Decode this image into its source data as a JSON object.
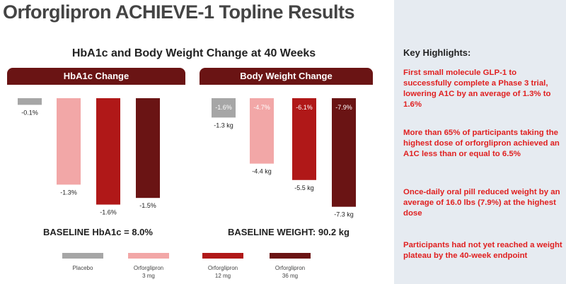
{
  "title": "Orforglipron ACHIEVE-1 Topline Results",
  "chart_heading": "HbA1c and Body Weight Change at 40 Weeks",
  "chart_data": [
    {
      "type": "bar",
      "title": "HbA1c Change",
      "categories": [
        "Placebo",
        "Orforglipron 3 mg",
        "Orforglipron 12 mg",
        "Orforglipron 36 mg"
      ],
      "values": [
        -0.1,
        -1.3,
        -1.6,
        -1.5
      ],
      "value_labels": [
        "-0.1%",
        "-1.3%",
        "-1.6%",
        "-1.5%"
      ],
      "ylim": [
        -1.7,
        0
      ],
      "baseline_text": "BASELINE HbA1c = 8.0%"
    },
    {
      "type": "bar",
      "title": "Body Weight Change",
      "categories": [
        "Placebo",
        "Orforglipron 3 mg",
        "Orforglipron 12 mg",
        "Orforglipron 36 mg"
      ],
      "values": [
        -1.3,
        -4.4,
        -5.5,
        -7.3
      ],
      "percent_labels": [
        "-1.6%",
        "-4.7%",
        "-6.1%",
        "-7.9%"
      ],
      "value_labels": [
        "-1.3 kg",
        "-4.4 kg",
        "-5.5 kg",
        "-7.3 kg"
      ],
      "ylim": [
        -7.6,
        0
      ],
      "baseline_text": "BASELINE WEIGHT: 90.2 kg"
    }
  ],
  "legend": [
    {
      "line1": "Placebo",
      "line2": "",
      "color": "#a6a6a6"
    },
    {
      "line1": "Orforglipron",
      "line2": "3 mg",
      "color": "#f2a7a7"
    },
    {
      "line1": "Orforglipron",
      "line2": "12 mg",
      "color": "#b01818"
    },
    {
      "line1": "Orforglipron",
      "line2": "36 mg",
      "color": "#6a1414"
    }
  ],
  "colors": {
    "placebo": "#a6a6a6",
    "dose_3mg": "#f2a7a7",
    "dose_12mg": "#b01818",
    "dose_36mg": "#6a1414",
    "panel_header": "#6a1414",
    "highlight_text": "#e02020",
    "sidebar_bg": "#e6ebf1"
  },
  "highlights": {
    "title": "Key Highlights:",
    "items": [
      "First small molecule GLP-1 to successfully complete a Phase 3 trial, lowering A1C by an average of 1.3% to 1.6%",
      "More than 65% of participants taking the highest dose of orforglipron achieved an A1C less than or equal to 6.5%",
      "Once-daily oral pill reduced weight by an average of 16.0 lbs (7.9%) at the highest dose",
      "Participants had not yet reached a weight plateau by the 40-week endpoint"
    ]
  }
}
